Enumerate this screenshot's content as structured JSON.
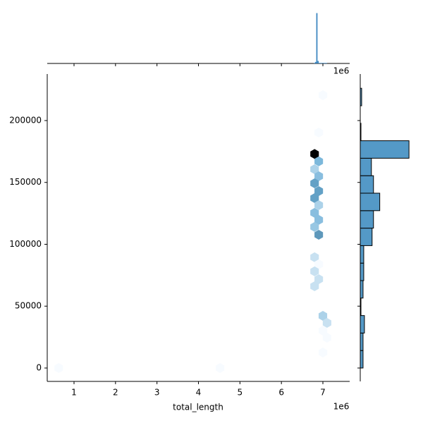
{
  "chart_data": {
    "type": "hexbin",
    "xlabel": "total_length",
    "x_offset_label": "1e6",
    "xlim": [
      354000,
      7646000
    ],
    "ylim": [
      -10826,
      237600
    ],
    "xticks": [
      {
        "value": 1000000,
        "label": "1"
      },
      {
        "value": 2000000,
        "label": "2"
      },
      {
        "value": 3000000,
        "label": "3"
      },
      {
        "value": 4000000,
        "label": "4"
      },
      {
        "value": 5000000,
        "label": "5"
      },
      {
        "value": 6000000,
        "label": "6"
      },
      {
        "value": 7000000,
        "label": "7"
      }
    ],
    "yticks": [
      0,
      50000,
      100000,
      150000,
      200000
    ],
    "hexbins": {
      "x": [
        6800000,
        6900000,
        6800000,
        6900000,
        6800000,
        6900000,
        6800000,
        6900000,
        6800000,
        6900000,
        6800000,
        6900000,
        6800000,
        6900000,
        6800000,
        6900000,
        6800000,
        7000000,
        7100000,
        7000000,
        7100000,
        7000000,
        6900000,
        4520000,
        630000,
        7000000
      ],
      "y": [
        173000,
        167000,
        160700,
        155000,
        149300,
        143000,
        137300,
        131600,
        125400,
        119700,
        114000,
        107700,
        89500,
        83800,
        78100,
        71800,
        66100,
        42200,
        36500,
        30200,
        24500,
        12500,
        190300,
        0,
        0,
        220500
      ],
      "counts": [
        60,
        6,
        3,
        5,
        9,
        9,
        9,
        3,
        5,
        5,
        4,
        10,
        2,
        1,
        2,
        2,
        2,
        3,
        2,
        1,
        1,
        1,
        1,
        1,
        1,
        1
      ],
      "colors": [
        "#f7fbff",
        "#6baed6",
        "#000000"
      ]
    },
    "marginal_x": {
      "bins": [
        6780000,
        6810000,
        6840000,
        6870000,
        6900000,
        7000000,
        7100000
      ],
      "counts": [
        1,
        3,
        100,
        5,
        1,
        1
      ],
      "ylim": [
        0,
        105
      ],
      "color": "#3b86c0"
    },
    "marginal_y": {
      "bins": [
        0,
        14130,
        28260,
        42390,
        56520,
        70650,
        84780,
        98910,
        113040,
        127170,
        141300,
        155430,
        169560,
        183690,
        197820,
        211950,
        226080
      ],
      "counts": [
        4,
        4,
        6,
        1,
        4,
        5,
        5,
        17,
        19,
        28,
        19,
        16,
        70,
        1,
        0,
        2
      ],
      "xlim": [
        0,
        80
      ],
      "color": "#5499c7"
    }
  }
}
